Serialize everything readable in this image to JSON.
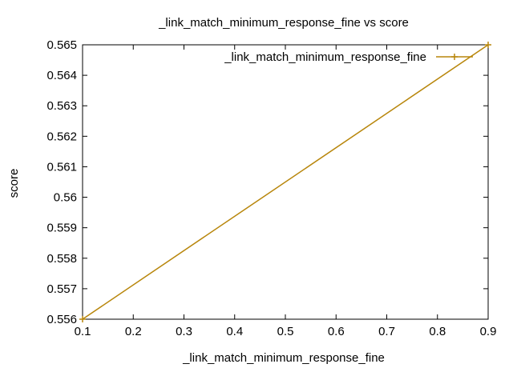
{
  "chart_data": {
    "type": "line",
    "title": "_link_match_minimum_response_fine vs score",
    "xlabel": "_link_match_minimum_response_fine",
    "ylabel": "score",
    "xlim": [
      0.1,
      0.9
    ],
    "ylim": [
      0.556,
      0.565
    ],
    "x_ticks": [
      "0.1",
      "0.2",
      "0.3",
      "0.4",
      "0.5",
      "0.6",
      "0.7",
      "0.8",
      "0.9"
    ],
    "y_ticks": [
      "0.556",
      "0.557",
      "0.558",
      "0.559",
      "0.56",
      "0.561",
      "0.562",
      "0.563",
      "0.564",
      "0.565"
    ],
    "grid": false,
    "legend_position": "top-right",
    "series": [
      {
        "name": "_link_match_minimum_response_fine",
        "color": "#b8860b",
        "marker": "plus",
        "points": [
          {
            "x": 0.1,
            "y": 0.556
          },
          {
            "x": 0.9,
            "y": 0.565
          }
        ]
      }
    ]
  }
}
